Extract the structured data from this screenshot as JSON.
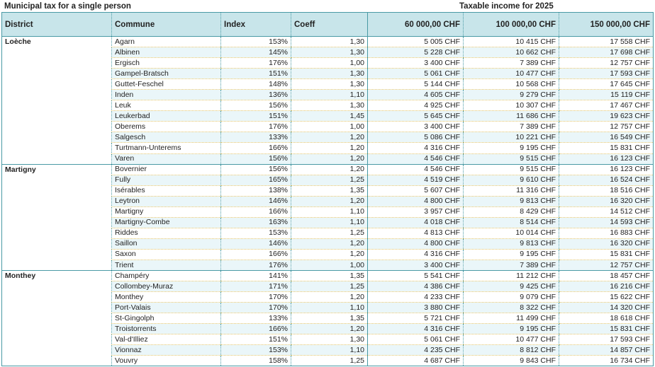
{
  "title": "Municipal tax for a single person",
  "income_label": "Taxable income for 2025",
  "headers": [
    "District",
    "Commune",
    "Index",
    "Coeff",
    "60 000,00 CHF",
    "100 000,00 CHF",
    "150 000,00 CHF"
  ],
  "groups": [
    {
      "district": "Loèche",
      "rows": [
        [
          "Agarn",
          "153%",
          "1,30",
          "5 005 CHF",
          "10 415 CHF",
          "17 558 CHF"
        ],
        [
          "Albinen",
          "145%",
          "1,30",
          "5 228 CHF",
          "10 662 CHF",
          "17 698 CHF"
        ],
        [
          "Ergisch",
          "176%",
          "1,00",
          "3 400 CHF",
          "7 389 CHF",
          "12 757 CHF"
        ],
        [
          "Gampel-Bratsch",
          "151%",
          "1,30",
          "5 061 CHF",
          "10 477 CHF",
          "17 593 CHF"
        ],
        [
          "Guttet-Feschel",
          "148%",
          "1,30",
          "5 144 CHF",
          "10 568 CHF",
          "17 645 CHF"
        ],
        [
          "Inden",
          "136%",
          "1,10",
          "4 605 CHF",
          "9 279 CHF",
          "15 119 CHF"
        ],
        [
          "Leuk",
          "156%",
          "1,30",
          "4 925 CHF",
          "10 307 CHF",
          "17 467 CHF"
        ],
        [
          "Leukerbad",
          "151%",
          "1,45",
          "5 645 CHF",
          "11 686 CHF",
          "19 623 CHF"
        ],
        [
          "Oberems",
          "176%",
          "1,00",
          "3 400 CHF",
          "7 389 CHF",
          "12 757 CHF"
        ],
        [
          "Salgesch",
          "133%",
          "1,20",
          "5 086 CHF",
          "10 221 CHF",
          "16 549 CHF"
        ],
        [
          "Turtmann-Unterems",
          "166%",
          "1,20",
          "4 316 CHF",
          "9 195 CHF",
          "15 831 CHF"
        ],
        [
          "Varen",
          "156%",
          "1,20",
          "4 546 CHF",
          "9 515 CHF",
          "16 123 CHF"
        ]
      ]
    },
    {
      "district": "Martigny",
      "rows": [
        [
          "Bovernier",
          "156%",
          "1,20",
          "4 546 CHF",
          "9 515 CHF",
          "16 123 CHF"
        ],
        [
          "Fully",
          "165%",
          "1,25",
          "4 519 CHF",
          "9 610 CHF",
          "16 524 CHF"
        ],
        [
          "Isérables",
          "138%",
          "1,35",
          "5 607 CHF",
          "11 316 CHF",
          "18 516 CHF"
        ],
        [
          "Leytron",
          "146%",
          "1,20",
          "4 800 CHF",
          "9 813 CHF",
          "16 320 CHF"
        ],
        [
          "Martigny",
          "166%",
          "1,10",
          "3 957 CHF",
          "8 429 CHF",
          "14 512 CHF"
        ],
        [
          "Martigny-Combe",
          "163%",
          "1,10",
          "4 018 CHF",
          "8 514 CHF",
          "14 593 CHF"
        ],
        [
          "Riddes",
          "153%",
          "1,25",
          "4 813 CHF",
          "10 014 CHF",
          "16 883 CHF"
        ],
        [
          "Saillon",
          "146%",
          "1,20",
          "4 800 CHF",
          "9 813 CHF",
          "16 320 CHF"
        ],
        [
          "Saxon",
          "166%",
          "1,20",
          "4 316 CHF",
          "9 195 CHF",
          "15 831 CHF"
        ],
        [
          "Trient",
          "176%",
          "1,00",
          "3 400 CHF",
          "7 389 CHF",
          "12 757 CHF"
        ]
      ]
    },
    {
      "district": "Monthey",
      "rows": [
        [
          "Champéry",
          "141%",
          "1,35",
          "5 541 CHF",
          "11 212 CHF",
          "18 457 CHF"
        ],
        [
          "Collombey-Muraz",
          "171%",
          "1,25",
          "4 386 CHF",
          "9 425 CHF",
          "16 216 CHF"
        ],
        [
          "Monthey",
          "170%",
          "1,20",
          "4 233 CHF",
          "9 079 CHF",
          "15 622 CHF"
        ],
        [
          "Port-Valais",
          "170%",
          "1,10",
          "3 880 CHF",
          "8 322 CHF",
          "14 320 CHF"
        ],
        [
          "St-Gingolph",
          "133%",
          "1,35",
          "5 721 CHF",
          "11 499 CHF",
          "18 618 CHF"
        ],
        [
          "Troistorrents",
          "166%",
          "1,20",
          "4 316 CHF",
          "9 195 CHF",
          "15 831 CHF"
        ],
        [
          "Val-d'Illiez",
          "151%",
          "1,30",
          "5 061 CHF",
          "10 477 CHF",
          "17 593 CHF"
        ],
        [
          "Vionnaz",
          "153%",
          "1,10",
          "4 235 CHF",
          "8 812 CHF",
          "14 857 CHF"
        ],
        [
          "Vouvry",
          "158%",
          "1,25",
          "4 687 CHF",
          "9 843 CHF",
          "16 734 CHF"
        ]
      ]
    }
  ]
}
